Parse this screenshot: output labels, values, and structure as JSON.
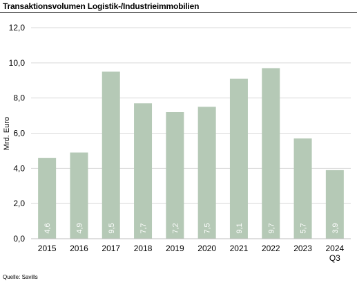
{
  "chart_data": {
    "type": "bar",
    "title": "Transaktionsvolumen Logistik-/Industrieimmobilien",
    "ylabel": "Mrd. Euro",
    "xlabel": "",
    "categories": [
      {
        "line1": "2015",
        "line2": ""
      },
      {
        "line1": "2016",
        "line2": ""
      },
      {
        "line1": "2017",
        "line2": ""
      },
      {
        "line1": "2018",
        "line2": ""
      },
      {
        "line1": "2019",
        "line2": ""
      },
      {
        "line1": "2020",
        "line2": ""
      },
      {
        "line1": "2021",
        "line2": ""
      },
      {
        "line1": "2022",
        "line2": ""
      },
      {
        "line1": "2023",
        "line2": ""
      },
      {
        "line1": "2024",
        "line2": "Q3"
      }
    ],
    "values": [
      4.6,
      4.9,
      9.5,
      7.7,
      7.2,
      7.5,
      9.1,
      9.7,
      5.7,
      3.9
    ],
    "data_labels": [
      "4,6",
      "4,9",
      "9,5",
      "7,7",
      "7,2",
      "7,5",
      "9,1",
      "9,7",
      "5,7",
      "3,9"
    ],
    "yticks": [
      0,
      2,
      4,
      6,
      8,
      10,
      12
    ],
    "ytick_labels": [
      "0,0",
      "2,0",
      "4,0",
      "6,0",
      "8,0",
      "10,0",
      "12,0"
    ],
    "ylim": [
      0,
      12
    ],
    "grid": true,
    "legend": "none",
    "bar_color": "#b5c9b6",
    "grid_color": "#d9d9d9",
    "label_color": "#ffffff",
    "source": "Quelle: Savills"
  }
}
